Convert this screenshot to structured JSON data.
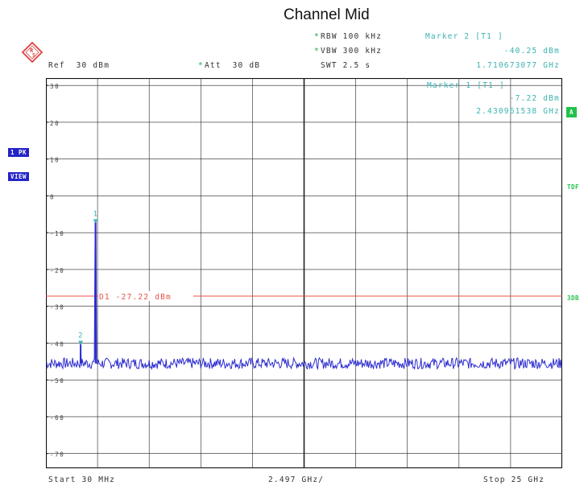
{
  "title": "Channel Mid",
  "header": {
    "ref": "Ref  30 dBm",
    "att_star": "*",
    "att": "Att  30 dB",
    "rbw_star": "*",
    "rbw": "RBW 100 kHz",
    "vbw_star": "*",
    "vbw": "VBW 300 kHz",
    "swt": "SWT 2.5 s"
  },
  "markers": {
    "m2_title": "Marker 2 [T1 ]",
    "m2_level": "-40.25 dBm",
    "m2_freq": "1.710673077 GHz",
    "m1_title": "Marker 1 [T1 ]",
    "m1_level": "-7.22 dBm",
    "m1_freq": "2.430961538 GHz"
  },
  "side_labels": {
    "trace_mode_1": "1 PK",
    "trace_mode_2": "VIEW",
    "trace_a": "A",
    "tdf": "TDF",
    "threedb": "3DB"
  },
  "display_line": {
    "label": "D1 -27.22 dBm",
    "level": -27.22
  },
  "axis": {
    "y_ticks": [
      "30",
      "20",
      "10",
      "0",
      "-10",
      "-20",
      "-30",
      "-40",
      "-50",
      "-60",
      "-70"
    ],
    "ylim": [
      -74,
      32
    ],
    "start": "Start 30 MHz",
    "div": "2.497 GHz/",
    "stop": "Stop 25 GHz"
  },
  "chart_data": {
    "type": "line",
    "x_range_ghz": [
      0.03,
      25
    ],
    "ylim": [
      -74,
      32
    ],
    "noise_floor_dbm": -45.5,
    "series": [
      {
        "x": [
          0.03,
          1.6,
          1.71,
          1.8,
          2.33,
          2.43,
          2.53,
          25
        ],
        "values": [
          -45.5,
          -45.5,
          -40.25,
          -45.5,
          -45.5,
          -7.22,
          -45.5,
          -45.5
        ]
      }
    ],
    "markers": [
      {
        "label": "1",
        "x": 2.430961538,
        "y": -7.22
      },
      {
        "label": "2",
        "x": 1.710673077,
        "y": -40.25
      }
    ],
    "colors": {
      "trace": "#2d2dd0",
      "display_line": "#e8504a",
      "marker": "#3bb3b0",
      "grid": "#222222"
    },
    "grid": true
  }
}
